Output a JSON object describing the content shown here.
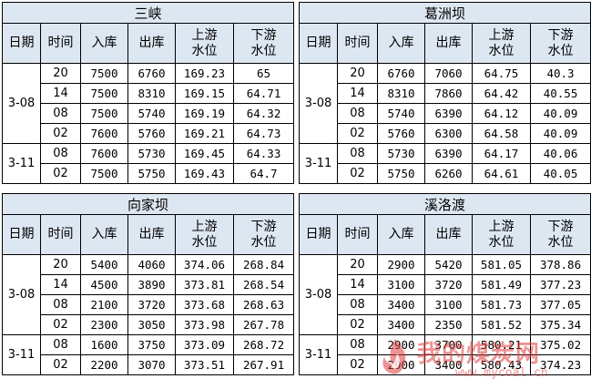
{
  "header_labels": {
    "date": "日期",
    "time": "时间",
    "inflow": "入库",
    "outflow": "出库",
    "upstream": [
      "上游",
      "水位"
    ],
    "downstream": [
      "下游",
      "水位"
    ]
  },
  "panels": [
    {
      "title": "三峡",
      "groups": [
        {
          "date": "3-08",
          "rows": [
            [
              "20",
              "7500",
              "6760",
              "169.23",
              "65"
            ],
            [
              "14",
              "7500",
              "8310",
              "169.15",
              "64.71"
            ],
            [
              "08",
              "7500",
              "5740",
              "169.19",
              "64.32"
            ],
            [
              "02",
              "7600",
              "5760",
              "169.21",
              "64.73"
            ]
          ]
        },
        {
          "date": "3-11",
          "rows": [
            [
              "08",
              "7600",
              "5730",
              "169.45",
              "64.33"
            ],
            [
              "02",
              "7500",
              "5750",
              "169.43",
              "64.7"
            ]
          ]
        }
      ]
    },
    {
      "title": "葛洲坝",
      "groups": [
        {
          "date": "3-08",
          "rows": [
            [
              "20",
              "6760",
              "7060",
              "64.75",
              "40.3"
            ],
            [
              "14",
              "8310",
              "7860",
              "64.42",
              "40.55"
            ],
            [
              "08",
              "5740",
              "6390",
              "64.12",
              "40.09"
            ],
            [
              "02",
              "5760",
              "6300",
              "64.58",
              "40.09"
            ]
          ]
        },
        {
          "date": "3-11",
          "rows": [
            [
              "08",
              "5730",
              "6390",
              "64.17",
              "40.06"
            ],
            [
              "02",
              "5750",
              "6260",
              "64.61",
              "40.05"
            ]
          ]
        }
      ]
    },
    {
      "title": "向家坝",
      "groups": [
        {
          "date": "3-08",
          "rows": [
            [
              "20",
              "5400",
              "4060",
              "374.06",
              "268.84"
            ],
            [
              "14",
              "4500",
              "3890",
              "373.81",
              "268.54"
            ],
            [
              "08",
              "2100",
              "3720",
              "373.68",
              "268.63"
            ],
            [
              "02",
              "2300",
              "3050",
              "373.98",
              "267.78"
            ]
          ]
        },
        {
          "date": "3-11",
          "rows": [
            [
              "08",
              "1600",
              "3750",
              "373.09",
              "268.72"
            ],
            [
              "02",
              "2200",
              "3070",
              "373.51",
              "267.91"
            ]
          ]
        }
      ]
    },
    {
      "title": "溪洛渡",
      "groups": [
        {
          "date": "3-08",
          "rows": [
            [
              "20",
              "2900",
              "5420",
              "581.05",
              "378.86"
            ],
            [
              "14",
              "3100",
              "3720",
              "581.49",
              "377.23"
            ],
            [
              "08",
              "3400",
              "3100",
              "581.73",
              "377.05"
            ],
            [
              "02",
              "3400",
              "2350",
              "581.52",
              "375.34"
            ]
          ]
        },
        {
          "date": "3-11",
          "rows": [
            [
              "08",
              "2900",
              "3700",
              "580.21",
              "375.02"
            ],
            [
              "02",
              "2900",
              "3400",
              "580.43",
              "374.23"
            ]
          ]
        }
      ]
    }
  ],
  "watermark": {
    "text": "我的煤炭网",
    "url": "www.mycoal.cn"
  }
}
